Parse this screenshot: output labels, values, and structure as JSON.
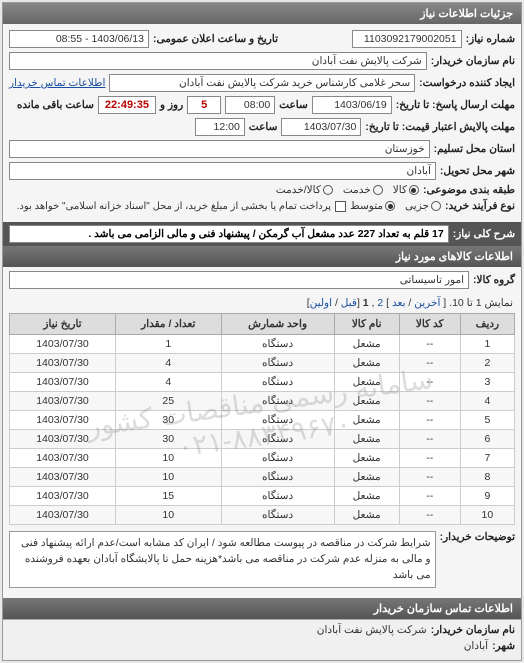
{
  "panel1": {
    "title": "جزئیات اطلاعات نیاز",
    "request_no_label": "شماره نیاز:",
    "request_no": "1103092179002051",
    "announce_label": "تاریخ و ساعت اعلان عمومی:",
    "announce_value": "1403/06/13 - 08:55",
    "buyer_label": "نام سازمان خریدار:",
    "buyer_value": "شرکت پالایش نفت آبادان",
    "requester_label": "ایجاد کننده درخواست:",
    "requester_value": "سحر غلامی کارشناس خرید  شرکت پالایش نفت آبادان",
    "contact_link": "اطلاعات تماس خریدار",
    "deadline_send_label": "مهلت ارسال پاسخ: تا تاریخ:",
    "deadline_send_date": "1403/06/19",
    "hour_label": "ساعت",
    "deadline_send_time": "08:00",
    "remain_day_value": "5",
    "remain_day_label": "روز و",
    "remain_time": "22:49:35",
    "remain_suffix": "ساعت باقی مانده",
    "validity_label": "مهلت پالایش اعتبار قیمت: تا تاریخ:",
    "validity_date": "1403/07/30",
    "validity_time": "12:00",
    "province_label": "استان محل تسلیم:",
    "province_value": "خوزستان",
    "city_label": "شهر محل تحویل:",
    "city_value": "آبادان",
    "pack_label": "طبقه بندی موضوعی:",
    "pack_options": {
      "all": "کالا",
      "service": "خدمت",
      "both": "کالا/خدمت"
    },
    "pack_selected": "all",
    "process_label": "نوع فرآیند خرید:",
    "process_options": {
      "low": "جزیی",
      "mid": "متوسط"
    },
    "process_selected": "mid",
    "process_note": "پرداخت تمام یا بخشی از مبلغ خرید، از محل \"اسناد خزانه اسلامی\" خواهد بود.",
    "process_checkbox": false
  },
  "need": {
    "label": "شرح کلی نیاز:",
    "text": "17 قلم به تعداد 227 عدد مشعل آب گرمکن / پیشنهاد فنی و مالی الزامی می باشد ."
  },
  "goods": {
    "header": "اطلاعات کالاهای مورد نیاز",
    "group_label": "گروه کالا:",
    "group_value": "امور تاسیساتی",
    "pager_text": "نمایش 1 تا 10.",
    "pager_links": {
      "last": "آخرین",
      "next": "بعد",
      "p2": "2",
      "p1": "1",
      "prev": "قبل",
      "first": "اولین"
    },
    "columns": [
      "ردیف",
      "کد کالا",
      "نام کالا",
      "واحد شمارش",
      "تعداد / مقدار",
      "تاریخ نیاز"
    ],
    "rows": [
      [
        "1",
        "--",
        "مشعل",
        "دستگاه",
        "1",
        "1403/07/30"
      ],
      [
        "2",
        "--",
        "مشعل",
        "دستگاه",
        "4",
        "1403/07/30"
      ],
      [
        "3",
        "--",
        "مشعل",
        "دستگاه",
        "4",
        "1403/07/30"
      ],
      [
        "4",
        "--",
        "مشعل",
        "دستگاه",
        "25",
        "1403/07/30"
      ],
      [
        "5",
        "--",
        "مشعل",
        "دستگاه",
        "30",
        "1403/07/30"
      ],
      [
        "6",
        "--",
        "مشعل",
        "دستگاه",
        "30",
        "1403/07/30"
      ],
      [
        "7",
        "--",
        "مشعل",
        "دستگاه",
        "10",
        "1403/07/30"
      ],
      [
        "8",
        "--",
        "مشعل",
        "دستگاه",
        "10",
        "1403/07/30"
      ],
      [
        "9",
        "--",
        "مشعل",
        "دستگاه",
        "15",
        "1403/07/30"
      ],
      [
        "10",
        "--",
        "مشعل",
        "دستگاه",
        "10",
        "1403/07/30"
      ]
    ],
    "watermark": "سامانه رسمی مناقصات کشور\n۰۲۱-۸۸۳۴۹۶۷۰"
  },
  "notes": {
    "label": "توضیحات خریدار:",
    "text": "شرایط شرکت در مناقصه در پیوست مطالعه شود / ایران کد مشابه است/عدم ارائه پیشنهاد فنی و مالی به منزله عدم شرکت در مناقصه می باشد*هزینه حمل تا پالایشگاه آبادان بعهده فروشنده می باشد"
  },
  "footer": {
    "header": "اطلاعات تماس سازمان خریدار",
    "org_label": "نام سازمان خریدار:",
    "org_value": "شرکت پالایش نفت آبادان",
    "city_label": "شهر:",
    "city_value": "آبادان"
  }
}
